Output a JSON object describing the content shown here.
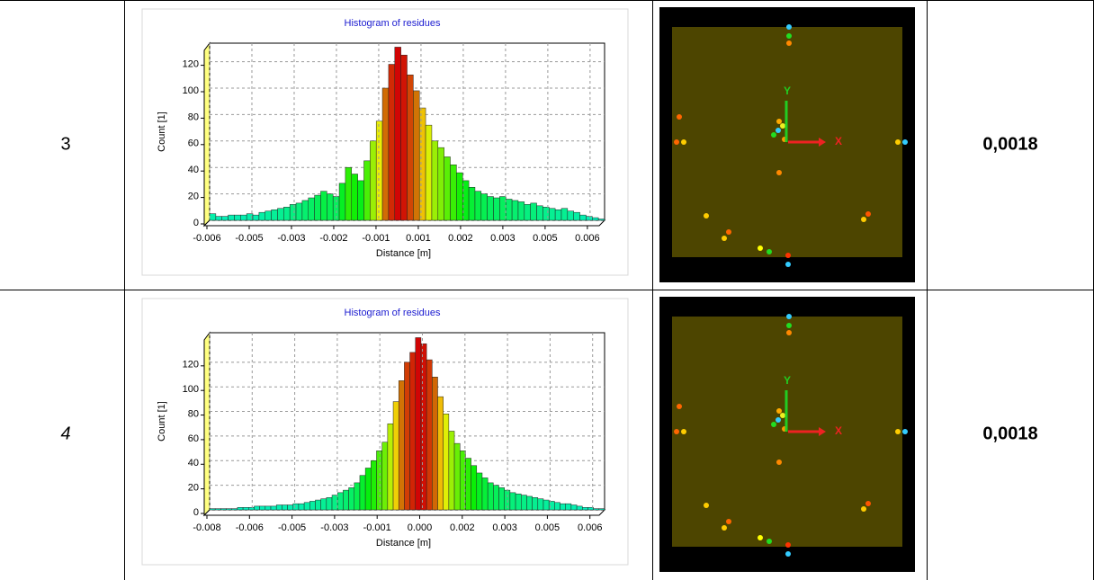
{
  "chart_data": [
    {
      "type": "histogram",
      "title": "Histogram of residues",
      "xlabel": "Distance [m]",
      "ylabel": "Count [1]",
      "bins": [
        -0.0062,
        -0.006,
        -0.0058,
        -0.0056,
        -0.0054,
        -0.0052,
        -0.005,
        -0.0048,
        -0.0046,
        -0.0044,
        -0.0042,
        -0.004,
        -0.0038,
        -0.0036,
        -0.0034,
        -0.0032,
        -0.003,
        -0.0028,
        -0.0026,
        -0.0024,
        -0.0022,
        -0.002,
        -0.0018,
        -0.0016,
        -0.0014,
        -0.0012,
        -0.001,
        -0.0008,
        -0.0006,
        -0.0004,
        -0.0002,
        0,
        0.0002,
        0.0004,
        0.0006,
        0.0008,
        0.001,
        0.0012,
        0.0014,
        0.0016,
        0.0018,
        0.002,
        0.0022,
        0.0024,
        0.0026,
        0.0028,
        0.003,
        0.0032,
        0.0034,
        0.0036,
        0.0038,
        0.004,
        0.0042,
        0.0044,
        0.0046,
        0.0048,
        0.005,
        0.0052,
        0.0054,
        0.0056,
        0.0058,
        0.006,
        0.0062,
        0.0064,
        0.0066
      ],
      "counts": [
        5,
        3,
        3,
        4,
        4,
        4,
        5,
        4,
        6,
        7,
        8,
        9,
        10,
        12,
        13,
        15,
        17,
        19,
        22,
        20,
        18,
        28,
        40,
        35,
        30,
        45,
        60,
        75,
        100,
        118,
        131,
        125,
        110,
        98,
        85,
        72,
        60,
        55,
        48,
        42,
        36,
        30,
        25,
        22,
        20,
        18,
        17,
        18,
        16,
        15,
        14,
        12,
        13,
        11,
        10,
        9,
        8,
        9,
        7,
        6,
        4,
        3,
        2,
        1
      ],
      "xlim": [
        -0.0062,
        0.0066
      ],
      "ylim": [
        0,
        134
      ],
      "xticks": [
        {
          "value": -0.0062,
          "label": "-0.006"
        },
        {
          "value": -0.00483,
          "label": "-0.005"
        },
        {
          "value": -0.00346,
          "label": "-0.003"
        },
        {
          "value": -0.00209,
          "label": "-0.002"
        },
        {
          "value": -0.00072,
          "label": "-0.001"
        },
        {
          "value": 0.00065,
          "label": "0.001"
        },
        {
          "value": 0.00202,
          "label": "0.002"
        },
        {
          "value": 0.00339,
          "label": "0.003"
        },
        {
          "value": 0.00476,
          "label": "0.005"
        },
        {
          "value": 0.00613,
          "label": "0.006"
        }
      ],
      "yticks": [
        0,
        20,
        40,
        60,
        80,
        100,
        120
      ],
      "grid": true
    },
    {
      "type": "histogram",
      "title": "Histogram of residues",
      "xlabel": "Distance [m]",
      "ylabel": "Count [1]",
      "bins": [
        -0.0076,
        -0.0074,
        -0.0072,
        -0.007,
        -0.0068,
        -0.0066,
        -0.0064,
        -0.0062,
        -0.006,
        -0.0058,
        -0.0056,
        -0.0054,
        -0.0052,
        -0.005,
        -0.0048,
        -0.0046,
        -0.0044,
        -0.0042,
        -0.004,
        -0.0038,
        -0.0036,
        -0.0034,
        -0.0032,
        -0.003,
        -0.0028,
        -0.0026,
        -0.0024,
        -0.0022,
        -0.002,
        -0.0018,
        -0.0016,
        -0.0014,
        -0.0012,
        -0.001,
        -0.0008,
        -0.0006,
        -0.0004,
        -0.0002,
        0,
        0.0002,
        0.0004,
        0.0006,
        0.0008,
        0.001,
        0.0012,
        0.0014,
        0.0016,
        0.0018,
        0.002,
        0.0022,
        0.0024,
        0.0026,
        0.0028,
        0.003,
        0.0032,
        0.0034,
        0.0036,
        0.0038,
        0.004,
        0.0042,
        0.0044,
        0.0046,
        0.0048,
        0.005,
        0.0052,
        0.0054,
        0.0056,
        0.0058,
        0.006,
        0.0062,
        0.0064,
        0.0066
      ],
      "counts": [
        1,
        1,
        1,
        1,
        1,
        2,
        2,
        2,
        3,
        3,
        3,
        3,
        4,
        4,
        4,
        5,
        5,
        6,
        7,
        8,
        9,
        10,
        12,
        14,
        16,
        18,
        22,
        28,
        34,
        40,
        48,
        55,
        70,
        88,
        105,
        120,
        128,
        140,
        135,
        122,
        108,
        92,
        78,
        64,
        54,
        48,
        42,
        36,
        30,
        26,
        22,
        20,
        18,
        16,
        14,
        13,
        12,
        11,
        10,
        9,
        8,
        7,
        6,
        5,
        5,
        4,
        3,
        2,
        2,
        1,
        1
      ],
      "xlim": [
        -0.0076,
        0.0066
      ],
      "ylim": [
        0,
        144
      ],
      "xticks": [
        {
          "value": -0.0076,
          "label": "-0.008"
        },
        {
          "value": -0.00607,
          "label": "-0.006"
        },
        {
          "value": -0.00454,
          "label": "-0.005"
        },
        {
          "value": -0.00301,
          "label": "-0.003"
        },
        {
          "value": -0.00148,
          "label": "-0.001"
        },
        {
          "value": 5e-05,
          "label": "0.000"
        },
        {
          "value": 0.00158,
          "label": "0.002"
        },
        {
          "value": 0.00311,
          "label": "0.003"
        },
        {
          "value": 0.00464,
          "label": "0.005"
        },
        {
          "value": 0.00617,
          "label": "0.006"
        }
      ],
      "yticks": [
        0,
        20,
        40,
        60,
        80,
        100,
        120
      ],
      "grid": true
    }
  ],
  "table": {
    "rows": [
      {
        "id": "3",
        "value": "0,0018",
        "image_labels": {
          "y": "Y",
          "x": "X"
        }
      },
      {
        "id": "4",
        "value": "0,0018",
        "image_labels": {
          "y": "Y",
          "x": "X"
        }
      }
    ]
  }
}
